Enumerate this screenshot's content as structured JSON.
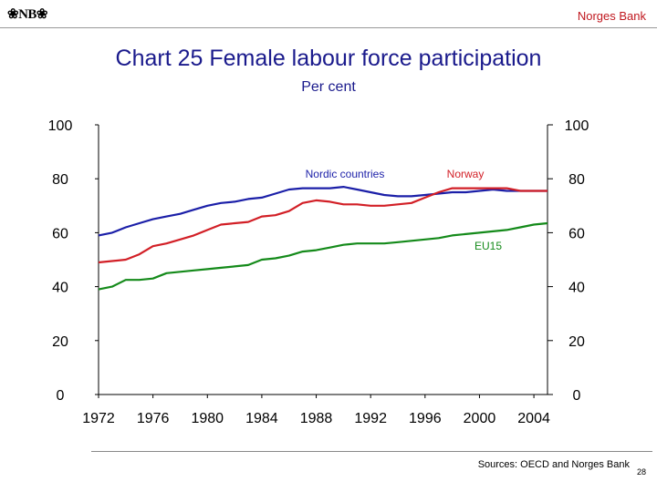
{
  "header": {
    "logo_text": "❀NB❀",
    "brand": "Norges Bank"
  },
  "footer": {
    "source": "Sources: OECD and Norges Bank",
    "page_number": "28"
  },
  "colors": {
    "title": "#1a1a8c",
    "brand": "#c0181f",
    "nordic": "#1b1fa8",
    "norway": "#d21f26",
    "eu15": "#148a1a"
  },
  "chart_data": {
    "type": "line",
    "title": "Chart 25 Female labour force participation",
    "subtitle": "Per cent",
    "ylim": [
      0,
      100
    ],
    "yticks": [
      0,
      20,
      40,
      60,
      80,
      100
    ],
    "xlim": [
      1972,
      2005
    ],
    "xticks": [
      1972,
      1976,
      1980,
      1984,
      1988,
      1992,
      1996,
      2000,
      2004
    ],
    "grid": false,
    "x": [
      1972,
      1973,
      1974,
      1975,
      1976,
      1977,
      1978,
      1979,
      1980,
      1981,
      1982,
      1983,
      1984,
      1985,
      1986,
      1987,
      1988,
      1989,
      1990,
      1991,
      1992,
      1993,
      1994,
      1995,
      1996,
      1997,
      1998,
      1999,
      2000,
      2001,
      2002,
      2003,
      2004,
      2005
    ],
    "series": [
      {
        "name": "Nordic countries",
        "color": "#1b1fa8",
        "values": [
          59,
          60,
          62,
          63.5,
          65,
          66,
          67,
          68.5,
          70,
          71,
          71.5,
          72.5,
          73,
          74.5,
          76,
          76.5,
          76.5,
          76.5,
          77,
          76,
          75,
          74,
          73.5,
          73.5,
          74,
          74.5,
          75,
          75,
          75.5,
          76,
          75.5,
          75.5,
          75.5,
          75.5
        ]
      },
      {
        "name": "Norway",
        "color": "#d21f26",
        "values": [
          49,
          49.5,
          50,
          52,
          55,
          56,
          57.5,
          59,
          61,
          63,
          63.5,
          64,
          66,
          66.5,
          68,
          71,
          72,
          71.5,
          70.5,
          70.5,
          70,
          70,
          70.5,
          71,
          73,
          75,
          76.5,
          76.5,
          76.5,
          76.5,
          76.5,
          75.5,
          75.5,
          75.5
        ]
      },
      {
        "name": "EU15",
        "color": "#148a1a",
        "values": [
          39,
          40,
          42.5,
          42.5,
          43,
          45,
          45.5,
          46,
          46.5,
          47,
          47.5,
          48,
          50,
          50.5,
          51.5,
          53,
          53.5,
          54.5,
          55.5,
          56,
          56,
          56,
          56.5,
          57,
          57.5,
          58,
          59,
          59.5,
          60,
          60.5,
          61,
          62,
          63,
          63.5
        ]
      }
    ],
    "annotations": [
      {
        "text": "Nordic countries",
        "series": "Nordic countries"
      },
      {
        "text": "Norway",
        "series": "Norway"
      },
      {
        "text": "EU15",
        "series": "EU15"
      }
    ]
  }
}
